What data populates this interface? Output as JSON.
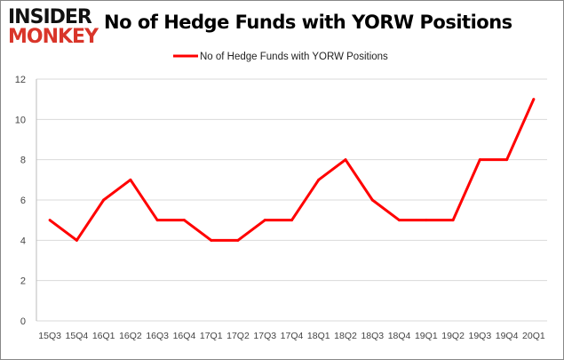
{
  "logo": {
    "line1": "INSIDER",
    "line2": "MONKEY"
  },
  "chart_data": {
    "type": "line",
    "title": "No of Hedge Funds with YORW Positions",
    "categories": [
      "15Q3",
      "15Q4",
      "16Q1",
      "16Q2",
      "16Q3",
      "16Q4",
      "17Q1",
      "17Q2",
      "17Q3",
      "17Q4",
      "18Q1",
      "18Q2",
      "18Q3",
      "18Q4",
      "19Q1",
      "19Q2",
      "19Q3",
      "19Q4",
      "20Q1"
    ],
    "series": [
      {
        "name": "No of Hedge Funds with YORW Positions",
        "color": "#ff0000",
        "values": [
          5,
          4,
          6,
          7,
          5,
          5,
          4,
          4,
          5,
          5,
          7,
          8,
          6,
          5,
          5,
          5,
          8,
          8,
          11
        ]
      }
    ],
    "ylim": [
      0,
      12
    ],
    "yticks": [
      0,
      2,
      4,
      6,
      8,
      10,
      12
    ],
    "grid": true,
    "legend": "top"
  }
}
